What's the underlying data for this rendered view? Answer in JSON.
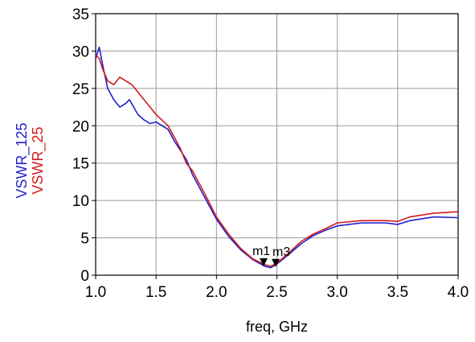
{
  "chart_data": {
    "type": "line",
    "title": "",
    "xlabel": "freq, GHz",
    "ylabels": [
      {
        "text": "VSWR_125",
        "color": "#1f1fcf"
      },
      {
        "text": "VSWR_25",
        "color": "#d11a1a"
      }
    ],
    "xlim": [
      1.0,
      4.0
    ],
    "ylim": [
      0,
      35
    ],
    "x_ticks": [
      "1.0",
      "1.5",
      "2.0",
      "2.5",
      "3.0",
      "3.5",
      "4.0"
    ],
    "y_ticks": [
      "0",
      "5",
      "10",
      "15",
      "20",
      "25",
      "30",
      "35"
    ],
    "grid": true,
    "series": [
      {
        "name": "VSWR_125",
        "color": "#1f1fcf",
        "x": [
          1.0,
          1.03,
          1.06,
          1.1,
          1.15,
          1.2,
          1.25,
          1.28,
          1.35,
          1.4,
          1.45,
          1.5,
          1.6,
          1.65,
          1.75,
          1.8,
          1.9,
          2.0,
          2.1,
          2.2,
          2.3,
          2.4,
          2.45,
          2.5,
          2.6,
          2.7,
          2.8,
          2.9,
          3.0,
          3.2,
          3.4,
          3.5,
          3.6,
          3.8,
          4.0
        ],
        "y": [
          29.0,
          30.5,
          28.0,
          25.0,
          23.5,
          22.5,
          23.0,
          23.5,
          21.5,
          20.8,
          20.3,
          20.5,
          19.5,
          18.0,
          15.5,
          13.5,
          10.5,
          7.5,
          5.2,
          3.4,
          2.1,
          1.2,
          1.0,
          1.5,
          2.8,
          4.2,
          5.3,
          6.0,
          6.6,
          7.0,
          7.0,
          6.8,
          7.3,
          7.8,
          7.7
        ]
      },
      {
        "name": "VSWR_25",
        "color": "#d11a1a",
        "x": [
          1.0,
          1.03,
          1.06,
          1.1,
          1.15,
          1.2,
          1.25,
          1.3,
          1.35,
          1.4,
          1.5,
          1.6,
          1.65,
          1.7,
          1.75,
          1.8,
          1.9,
          2.0,
          2.1,
          2.2,
          2.3,
          2.4,
          2.45,
          2.5,
          2.6,
          2.7,
          2.8,
          2.9,
          3.0,
          3.2,
          3.4,
          3.5,
          3.6,
          3.8,
          4.0
        ],
        "y": [
          29.5,
          29.0,
          27.5,
          26.0,
          25.5,
          26.5,
          26.0,
          25.5,
          24.5,
          23.5,
          21.5,
          20.0,
          18.5,
          17.0,
          15.0,
          14.0,
          11.0,
          7.8,
          5.5,
          3.6,
          2.2,
          1.4,
          1.2,
          1.6,
          3.0,
          4.5,
          5.5,
          6.2,
          7.0,
          7.3,
          7.3,
          7.2,
          7.8,
          8.3,
          8.5
        ]
      }
    ],
    "markers": [
      {
        "text": "m1",
        "x": 2.39,
        "y": 1.2
      },
      {
        "text": "m3",
        "x": 2.49,
        "y": 1.1
      }
    ]
  }
}
